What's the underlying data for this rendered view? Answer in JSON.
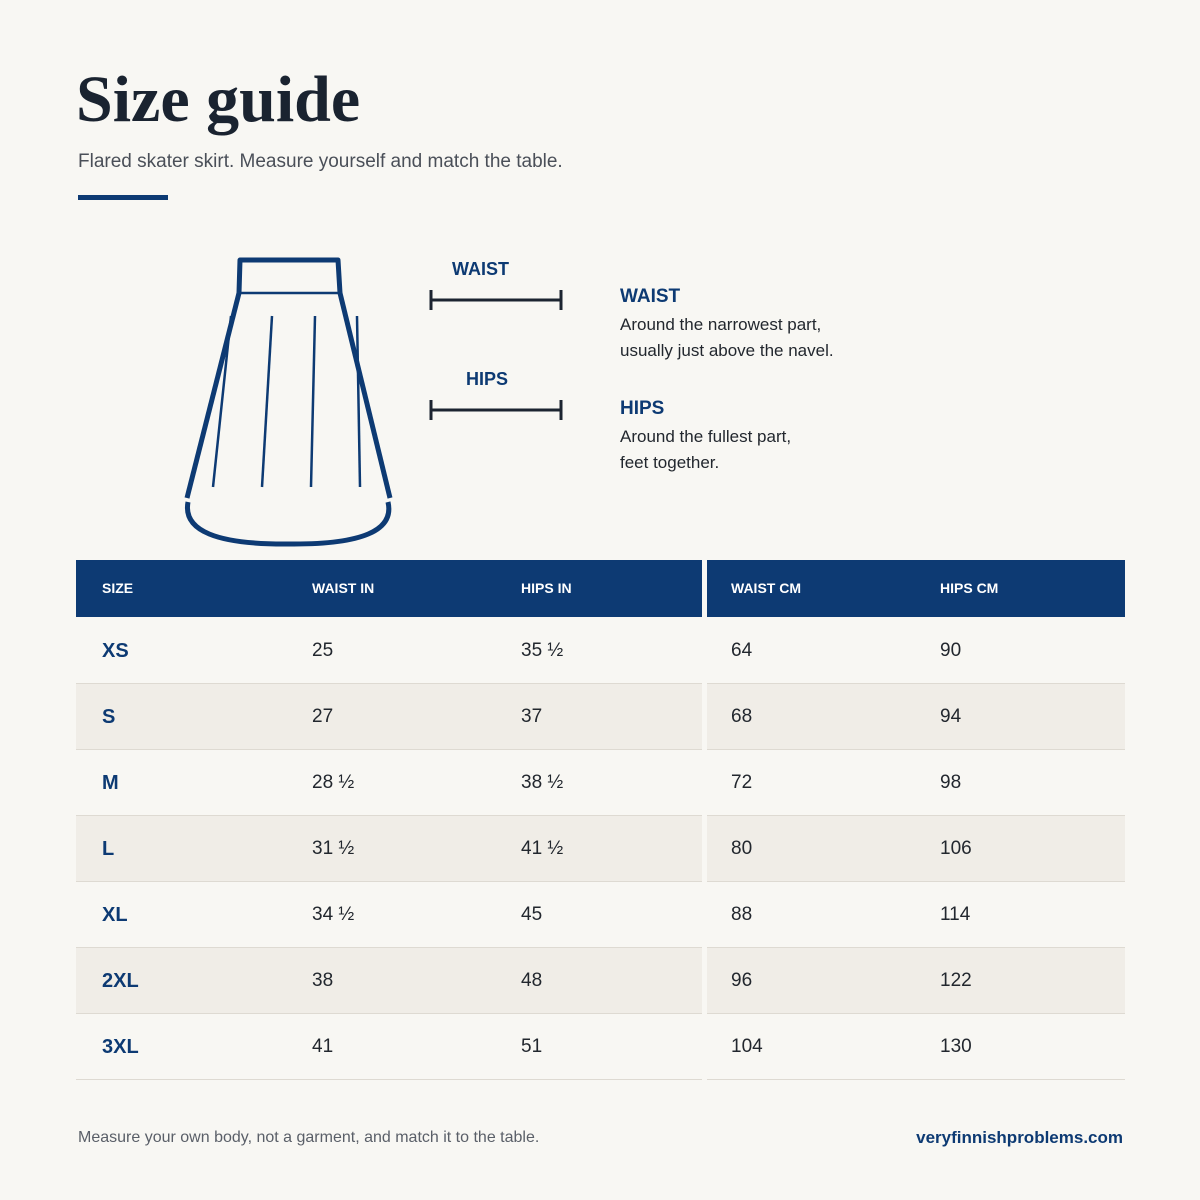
{
  "header": {
    "title": "Size guide",
    "subtitle": "Flared skater skirt. Measure yourself and match the table."
  },
  "diagram": {
    "labels": [
      "WAIST",
      "HIPS"
    ]
  },
  "measurements": [
    {
      "title": "WAIST",
      "lines": [
        "Around the narrowest part,",
        "usually just above the navel."
      ]
    },
    {
      "title": "HIPS",
      "lines": [
        "Around the fullest part,",
        "feet together."
      ]
    }
  ],
  "table": {
    "columns": [
      "SIZE",
      "WAIST IN",
      "HIPS IN",
      "WAIST CM",
      "HIPS CM"
    ],
    "rows": [
      [
        "XS",
        "25",
        "35 ½",
        "64",
        "90"
      ],
      [
        "S",
        "27",
        "37",
        "68",
        "94"
      ],
      [
        "M",
        "28 ½",
        "38 ½",
        "72",
        "98"
      ],
      [
        "L",
        "31 ½",
        "41 ½",
        "80",
        "106"
      ],
      [
        "XL",
        "34 ½",
        "45",
        "88",
        "114"
      ],
      [
        "2XL",
        "38",
        "48",
        "96",
        "122"
      ],
      [
        "3XL",
        "41",
        "51",
        "104",
        "130"
      ]
    ]
  },
  "footer": {
    "note": "Measure your own body, not a garment, and match it to the table.",
    "source": "veryfinnishproblems.com"
  }
}
